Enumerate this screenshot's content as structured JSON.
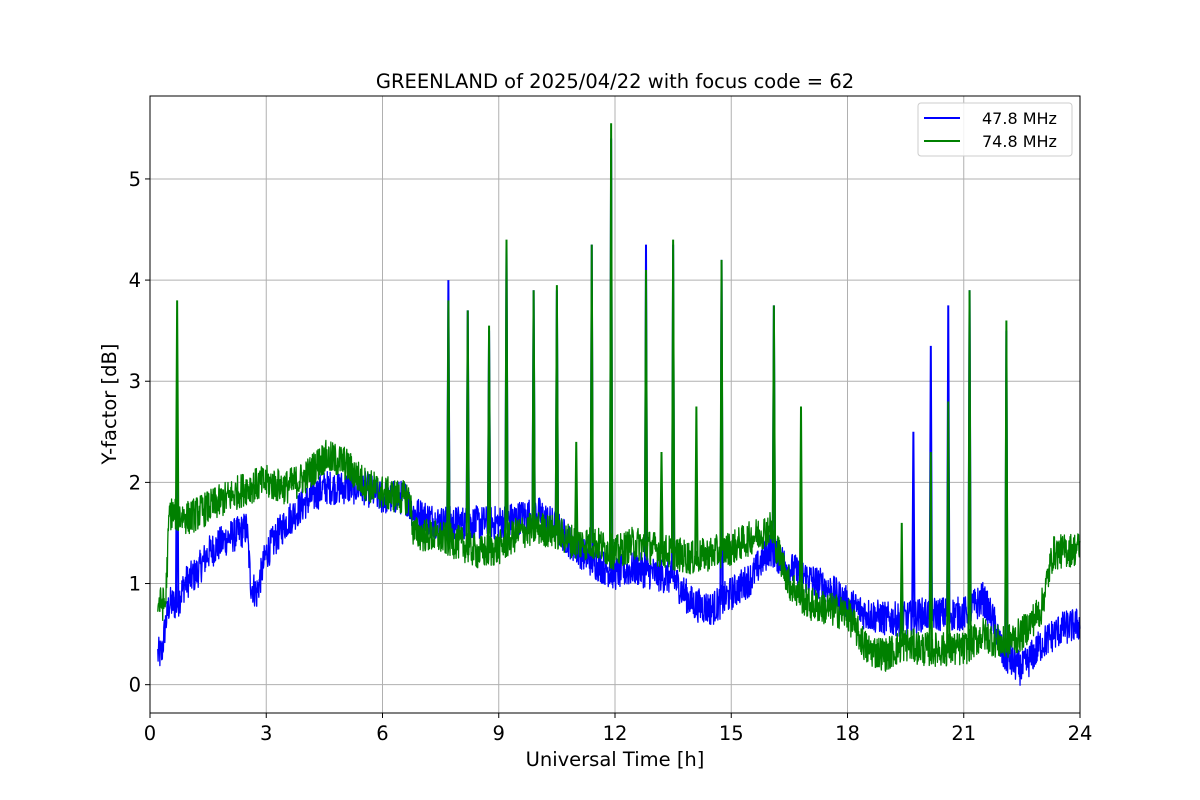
{
  "chart_data": {
    "type": "line",
    "title": "GREENLAND of 2025/04/22 with focus code = 62",
    "xlabel": "Universal Time [h]",
    "ylabel": "Y-factor [dB]",
    "xlim": [
      0,
      24
    ],
    "ylim": [
      -0.28,
      5.82
    ],
    "xticks": [
      0,
      3,
      6,
      9,
      12,
      15,
      18,
      21,
      24
    ],
    "yticks": [
      0,
      1,
      2,
      3,
      4,
      5
    ],
    "grid": true,
    "legend_position": "top-right",
    "series": [
      {
        "name": "47.8 MHz",
        "color": "#0000ff",
        "points": [
          [
            0.2,
            0.3
          ],
          [
            0.3,
            0.3
          ],
          [
            0.4,
            0.6
          ],
          [
            0.5,
            0.8
          ],
          [
            0.7,
            0.8
          ],
          [
            0.9,
            1.0
          ],
          [
            1.2,
            1.1
          ],
          [
            1.5,
            1.3
          ],
          [
            2.0,
            1.45
          ],
          [
            2.3,
            1.5
          ],
          [
            2.5,
            1.55
          ],
          [
            2.6,
            1.0
          ],
          [
            2.75,
            0.9
          ],
          [
            3.0,
            1.3
          ],
          [
            3.5,
            1.6
          ],
          [
            4.0,
            1.8
          ],
          [
            4.5,
            1.95
          ],
          [
            5.0,
            1.95
          ],
          [
            5.5,
            1.95
          ],
          [
            6.0,
            1.85
          ],
          [
            6.3,
            1.85
          ],
          [
            6.6,
            1.85
          ],
          [
            6.8,
            1.7
          ],
          [
            7.5,
            1.6
          ],
          [
            8.0,
            1.6
          ],
          [
            8.5,
            1.6
          ],
          [
            9.0,
            1.6
          ],
          [
            9.5,
            1.65
          ],
          [
            10.0,
            1.7
          ],
          [
            10.5,
            1.55
          ],
          [
            11.0,
            1.35
          ],
          [
            11.5,
            1.2
          ],
          [
            12.0,
            1.1
          ],
          [
            12.5,
            1.15
          ],
          [
            13.0,
            1.1
          ],
          [
            13.5,
            1.05
          ],
          [
            14.0,
            0.8
          ],
          [
            14.5,
            0.75
          ],
          [
            15.0,
            0.9
          ],
          [
            15.5,
            1.05
          ],
          [
            16.0,
            1.35
          ],
          [
            16.5,
            1.15
          ],
          [
            17.0,
            1.05
          ],
          [
            17.5,
            0.95
          ],
          [
            18.0,
            0.8
          ],
          [
            18.5,
            0.7
          ],
          [
            19.0,
            0.65
          ],
          [
            19.5,
            0.65
          ],
          [
            20.0,
            0.7
          ],
          [
            20.5,
            0.7
          ],
          [
            21.0,
            0.7
          ],
          [
            21.5,
            0.85
          ],
          [
            21.8,
            0.6
          ],
          [
            22.0,
            0.3
          ],
          [
            22.5,
            0.15
          ],
          [
            23.0,
            0.4
          ],
          [
            23.5,
            0.55
          ],
          [
            24.0,
            0.6
          ]
        ],
        "spikes": [
          [
            0.7,
            3.1
          ],
          [
            7.7,
            4.0
          ],
          [
            8.2,
            3.7
          ],
          [
            8.75,
            3.5
          ],
          [
            9.2,
            4.35
          ],
          [
            9.9,
            3.9
          ],
          [
            10.5,
            3.9
          ],
          [
            11.4,
            4.35
          ],
          [
            11.9,
            5.4
          ],
          [
            12.8,
            4.35
          ],
          [
            13.5,
            4.35
          ],
          [
            14.75,
            4.2
          ],
          [
            16.1,
            3.75
          ],
          [
            19.7,
            2.5
          ],
          [
            20.15,
            3.35
          ],
          [
            20.6,
            3.75
          ],
          [
            21.15,
            3.9
          ],
          [
            22.1,
            3.5
          ]
        ]
      },
      {
        "name": "74.8 MHz",
        "color": "#008000",
        "points": [
          [
            0.2,
            0.8
          ],
          [
            0.4,
            0.8
          ],
          [
            0.5,
            1.7
          ],
          [
            1.0,
            1.65
          ],
          [
            1.5,
            1.75
          ],
          [
            2.0,
            1.85
          ],
          [
            2.5,
            1.95
          ],
          [
            3.0,
            2.0
          ],
          [
            3.5,
            1.95
          ],
          [
            4.0,
            2.05
          ],
          [
            4.5,
            2.25
          ],
          [
            5.0,
            2.2
          ],
          [
            5.5,
            2.0
          ],
          [
            6.0,
            1.9
          ],
          [
            6.5,
            1.85
          ],
          [
            6.7,
            1.85
          ],
          [
            6.8,
            1.5
          ],
          [
            7.5,
            1.45
          ],
          [
            8.0,
            1.4
          ],
          [
            8.5,
            1.3
          ],
          [
            9.0,
            1.35
          ],
          [
            9.5,
            1.5
          ],
          [
            10.0,
            1.55
          ],
          [
            10.5,
            1.5
          ],
          [
            11.0,
            1.4
          ],
          [
            11.5,
            1.4
          ],
          [
            12.0,
            1.3
          ],
          [
            12.5,
            1.4
          ],
          [
            13.0,
            1.35
          ],
          [
            13.5,
            1.3
          ],
          [
            14.0,
            1.25
          ],
          [
            14.5,
            1.3
          ],
          [
            15.0,
            1.35
          ],
          [
            15.5,
            1.45
          ],
          [
            16.0,
            1.55
          ],
          [
            16.5,
            1.0
          ],
          [
            17.0,
            0.8
          ],
          [
            17.5,
            0.75
          ],
          [
            18.0,
            0.7
          ],
          [
            18.5,
            0.35
          ],
          [
            19.0,
            0.3
          ],
          [
            19.5,
            0.4
          ],
          [
            20.0,
            0.35
          ],
          [
            20.5,
            0.35
          ],
          [
            21.0,
            0.35
          ],
          [
            21.5,
            0.5
          ],
          [
            22.0,
            0.4
          ],
          [
            22.5,
            0.5
          ],
          [
            23.0,
            0.75
          ],
          [
            23.3,
            1.3
          ],
          [
            24.0,
            1.35
          ]
        ],
        "spikes": [
          [
            0.7,
            3.8
          ],
          [
            7.7,
            3.8
          ],
          [
            8.2,
            3.7
          ],
          [
            8.75,
            3.55
          ],
          [
            9.2,
            4.4
          ],
          [
            9.9,
            3.9
          ],
          [
            10.5,
            3.95
          ],
          [
            11.0,
            2.4
          ],
          [
            11.4,
            4.35
          ],
          [
            11.9,
            5.55
          ],
          [
            12.8,
            4.1
          ],
          [
            13.2,
            2.3
          ],
          [
            13.5,
            4.4
          ],
          [
            14.1,
            2.75
          ],
          [
            14.75,
            4.2
          ],
          [
            16.1,
            3.75
          ],
          [
            16.8,
            2.75
          ],
          [
            19.4,
            1.6
          ],
          [
            20.15,
            2.3
          ],
          [
            20.6,
            2.8
          ],
          [
            21.15,
            3.9
          ],
          [
            22.1,
            3.6
          ]
        ]
      }
    ]
  }
}
